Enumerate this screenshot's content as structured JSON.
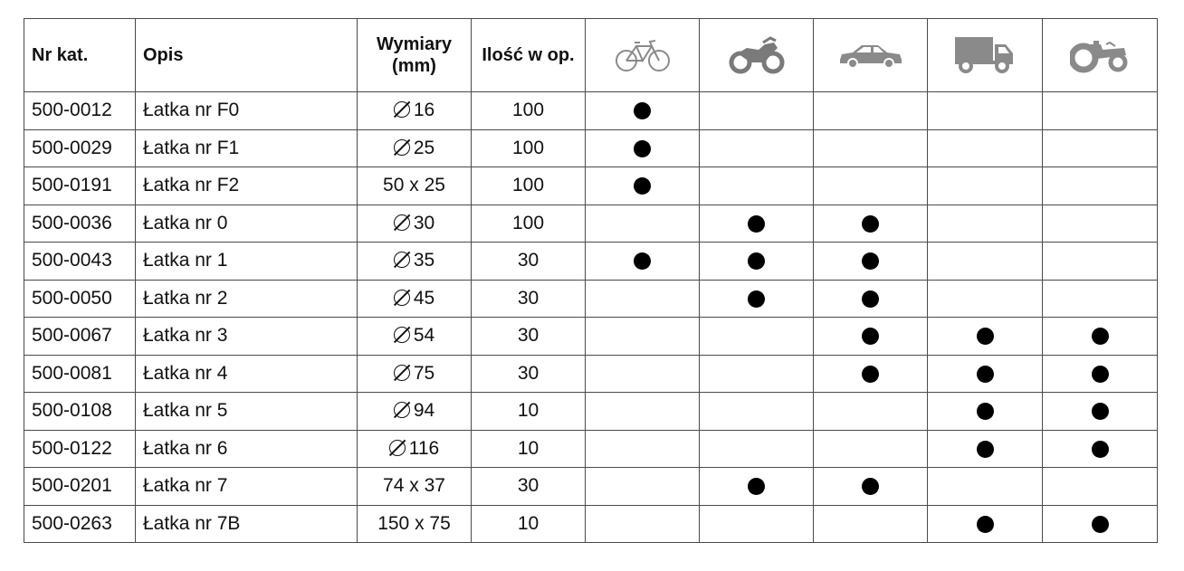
{
  "header": {
    "nr": "Nr kat.",
    "desc": "Opis",
    "dim_line1": "Wymiary",
    "dim_line2": "(mm)",
    "qty": "Ilość w op."
  },
  "vehicles": [
    "bicycle-icon",
    "motorcycle-icon",
    "car-icon",
    "truck-icon",
    "tractor-icon"
  ],
  "colors": {
    "icon_gray": "#8a8a8a",
    "border": "#4a4a4a",
    "dot": "#000000"
  },
  "rows": [
    {
      "nr": "500-0012",
      "desc": "Łatka nr F0",
      "round": true,
      "dim": "16",
      "qty": "100",
      "marks": [
        1,
        0,
        0,
        0,
        0
      ]
    },
    {
      "nr": "500-0029",
      "desc": "Łatka nr F1",
      "round": true,
      "dim": "25",
      "qty": "100",
      "marks": [
        1,
        0,
        0,
        0,
        0
      ]
    },
    {
      "nr": "500-0191",
      "desc": "Łatka nr F2",
      "round": false,
      "dim": "50 x 25",
      "qty": "100",
      "marks": [
        1,
        0,
        0,
        0,
        0
      ]
    },
    {
      "nr": "500-0036",
      "desc": "Łatka nr 0",
      "round": true,
      "dim": "30",
      "qty": "100",
      "marks": [
        0,
        1,
        1,
        0,
        0
      ]
    },
    {
      "nr": "500-0043",
      "desc": "Łatka nr 1",
      "round": true,
      "dim": "35",
      "qty": "30",
      "marks": [
        1,
        1,
        1,
        0,
        0
      ]
    },
    {
      "nr": "500-0050",
      "desc": "Łatka nr 2",
      "round": true,
      "dim": "45",
      "qty": "30",
      "marks": [
        0,
        1,
        1,
        0,
        0
      ]
    },
    {
      "nr": "500-0067",
      "desc": "Łatka nr 3",
      "round": true,
      "dim": "54",
      "qty": "30",
      "marks": [
        0,
        0,
        1,
        1,
        1
      ]
    },
    {
      "nr": "500-0081",
      "desc": "Łatka nr 4",
      "round": true,
      "dim": "75",
      "qty": "30",
      "marks": [
        0,
        0,
        1,
        1,
        1
      ]
    },
    {
      "nr": "500-0108",
      "desc": "Łatka nr 5",
      "round": true,
      "dim": "94",
      "qty": "10",
      "marks": [
        0,
        0,
        0,
        1,
        1
      ]
    },
    {
      "nr": "500-0122",
      "desc": "Łatka nr 6",
      "round": true,
      "dim": "116",
      "qty": "10",
      "marks": [
        0,
        0,
        0,
        1,
        1
      ]
    },
    {
      "nr": "500-0201",
      "desc": "Łatka nr 7",
      "round": false,
      "dim": "74 x 37",
      "qty": "30",
      "marks": [
        0,
        1,
        1,
        0,
        0
      ]
    },
    {
      "nr": "500-0263",
      "desc": "Łatka nr 7B",
      "round": false,
      "dim": "150 x 75",
      "qty": "10",
      "marks": [
        0,
        0,
        0,
        1,
        1
      ]
    }
  ]
}
